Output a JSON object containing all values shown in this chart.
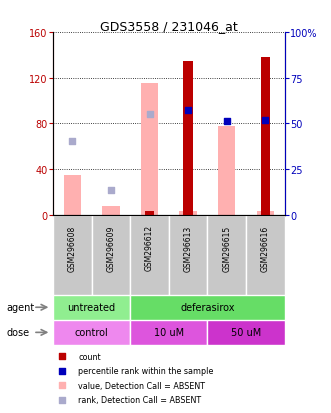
{
  "title": "GDS3558 / 231046_at",
  "samples": [
    "GSM296608",
    "GSM296609",
    "GSM296612",
    "GSM296613",
    "GSM296615",
    "GSM296616"
  ],
  "value_bars": [
    35,
    8,
    115,
    3,
    78,
    3
  ],
  "value_absent": [
    true,
    true,
    true,
    false,
    true,
    false
  ],
  "count_bars": [
    null,
    null,
    3,
    135,
    null,
    138
  ],
  "count_absent": [
    true,
    true,
    false,
    false,
    true,
    false
  ],
  "rank_dots_left": [
    65,
    22,
    88,
    92,
    82,
    83
  ],
  "rank_absent": [
    true,
    true,
    true,
    false,
    false,
    false
  ],
  "agent_groups": [
    {
      "label": "untreated",
      "start": 0,
      "end": 2,
      "color": "#90EE90"
    },
    {
      "label": "deferasirox",
      "start": 2,
      "end": 6,
      "color": "#66DD66"
    }
  ],
  "dose_groups": [
    {
      "label": "control",
      "start": 0,
      "end": 2,
      "color": "#EE88EE"
    },
    {
      "label": "10 uM",
      "start": 2,
      "end": 4,
      "color": "#DD55DD"
    },
    {
      "label": "50 uM",
      "start": 4,
      "end": 6,
      "color": "#CC33CC"
    }
  ],
  "ylim_left": [
    0,
    160
  ],
  "ylim_right": [
    0,
    100
  ],
  "yticks_left": [
    0,
    40,
    80,
    120,
    160
  ],
  "ytick_labels_left": [
    "0",
    "40",
    "80",
    "120",
    "160"
  ],
  "yticks_right": [
    0,
    25,
    50,
    75,
    100
  ],
  "ytick_labels_right": [
    "0",
    "25",
    "50",
    "75",
    "100%"
  ],
  "color_count": "#BB0000",
  "color_rank": "#0000BB",
  "color_value_absent": "#FFB0B0",
  "color_rank_absent": "#AAAACC",
  "bg_sample_row": "#C8C8C8",
  "bg_plot": "#FFFFFF"
}
